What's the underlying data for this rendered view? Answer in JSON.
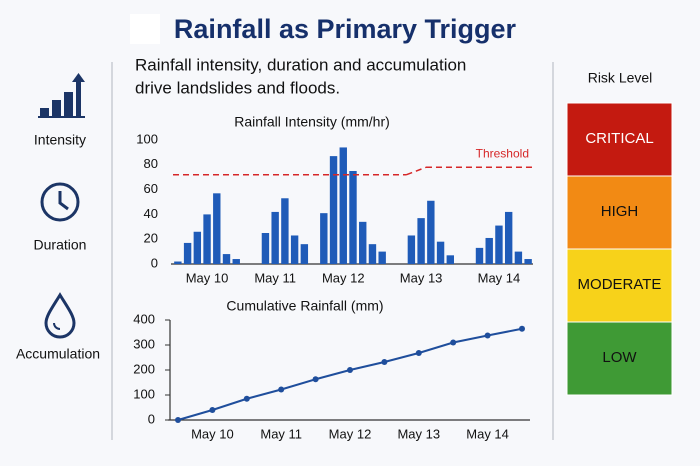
{
  "title": "Rainfall as Primary Trigger",
  "subtitle": [
    "Rainfall intensity, duration and accumulation",
    "drive landslides and floods."
  ],
  "factors": [
    "Intensity",
    "Duration",
    "Accumulation"
  ],
  "risk_panel": {
    "title": "Risk Level",
    "levels": [
      {
        "label": "CRITICAL",
        "color": "#c41a10"
      },
      {
        "label": "HIGH",
        "color": "#f28a14"
      },
      {
        "label": "MODERATE",
        "color": "#f7d21a"
      },
      {
        "label": "LOW",
        "color": "#3f9a35"
      }
    ]
  },
  "chart_data": [
    {
      "type": "bar",
      "title": "Rainfall Intensity (mm/hr)",
      "categories": [
        null,
        null,
        null,
        "May 10",
        null,
        null,
        null,
        null,
        null,
        null,
        "May 11",
        null,
        null,
        null,
        null,
        null,
        null,
        "May 12",
        null,
        null,
        null,
        null,
        null,
        null,
        null,
        "May 13",
        null,
        null,
        null,
        null,
        null,
        null,
        null,
        "May 14",
        null,
        null,
        null
      ],
      "values": [
        2,
        17,
        26,
        40,
        57,
        8,
        4,
        null,
        null,
        25,
        42,
        53,
        23,
        16,
        null,
        41,
        87,
        94,
        75,
        34,
        16,
        10,
        null,
        null,
        23,
        37,
        51,
        18,
        7,
        null,
        null,
        13,
        21,
        31,
        42,
        10,
        4
      ],
      "color": "#1f5bb8",
      "ylim": [
        0,
        100
      ],
      "yticks": [
        0,
        20,
        40,
        60,
        80,
        100
      ],
      "threshold": {
        "label": "Threshold",
        "values": [
          72,
          78
        ],
        "color": "#d62728"
      }
    },
    {
      "type": "line",
      "title": "Cumulative Rainfall (mm)",
      "categories": [
        null,
        "May 10",
        null,
        "May 11",
        null,
        "May 12",
        null,
        "May 13",
        null,
        "May 14",
        null
      ],
      "values": [
        0,
        40,
        85,
        122,
        163,
        200,
        232,
        268,
        310,
        338,
        365
      ],
      "color": "#1f4e9c",
      "ylim": [
        0,
        400
      ],
      "yticks": [
        0,
        100,
        200,
        300,
        400
      ]
    }
  ]
}
